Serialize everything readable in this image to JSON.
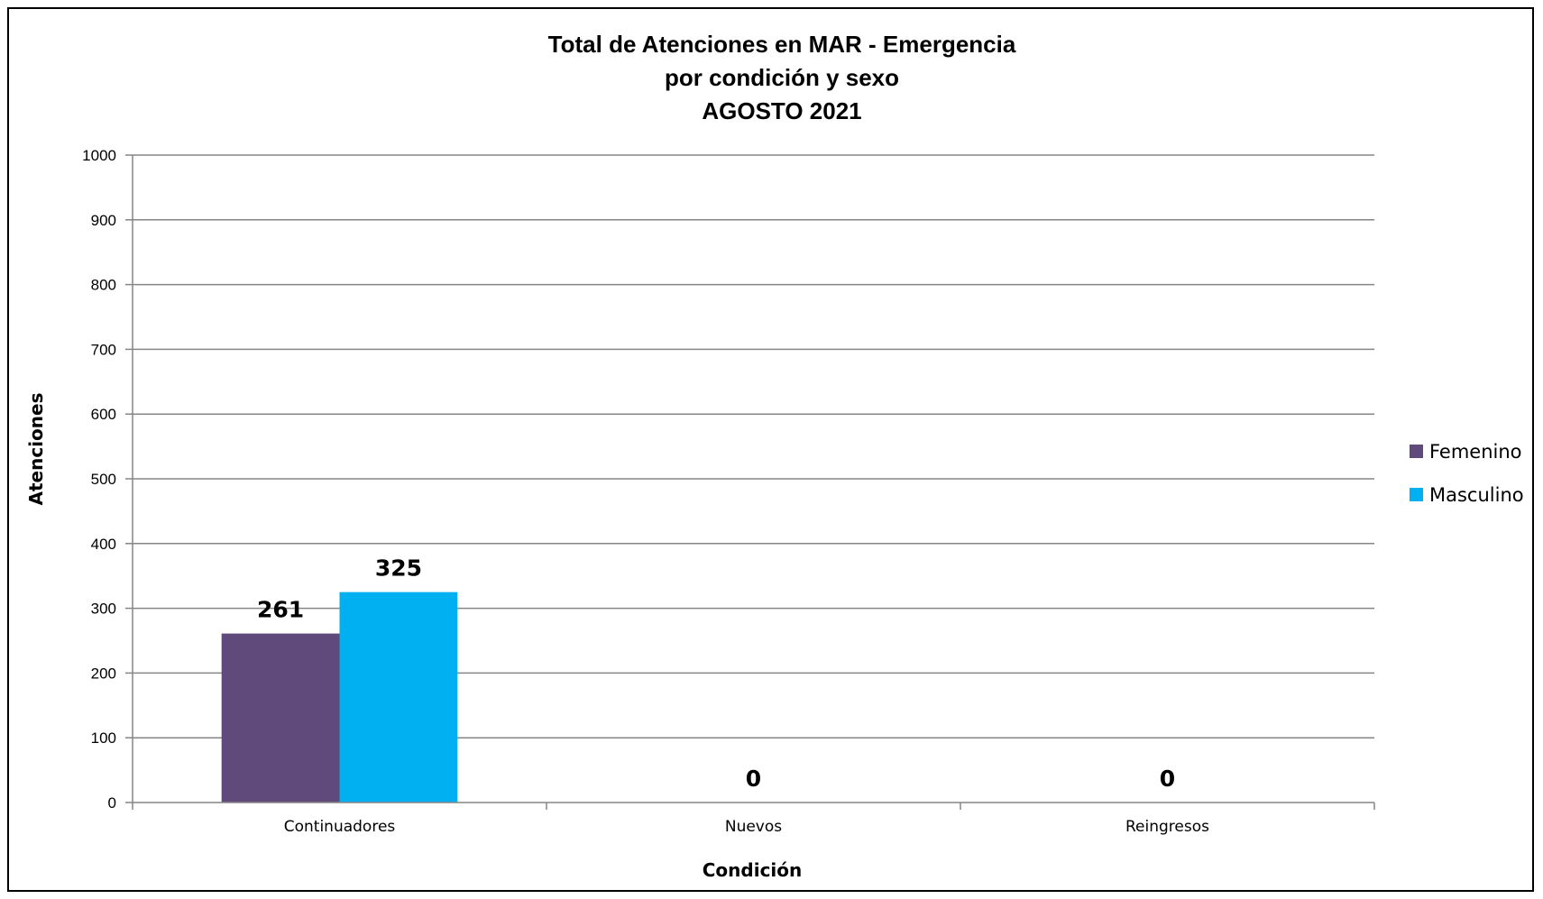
{
  "chart_data": {
    "type": "bar",
    "title": [
      "Total de Atenciones en MAR - Emergencia",
      "por condición y sexo",
      "AGOSTO 2021"
    ],
    "xlabel": "Condición",
    "ylabel": "Atenciones",
    "categories": [
      "Continuadores",
      "Nuevos",
      "Reingresos"
    ],
    "series": [
      {
        "name": "Femenino",
        "values": [
          261,
          0,
          0
        ],
        "color": "#604a7b"
      },
      {
        "name": "Masculino",
        "values": [
          325,
          0,
          0
        ],
        "color": "#00b0f0"
      }
    ],
    "data_labels": [
      "261",
      "325",
      "0",
      "0"
    ],
    "ylim": [
      0,
      1000
    ],
    "yticks": [
      0,
      100,
      200,
      300,
      400,
      500,
      600,
      700,
      800,
      900,
      1000
    ],
    "grid": true,
    "legend_position": "right"
  }
}
